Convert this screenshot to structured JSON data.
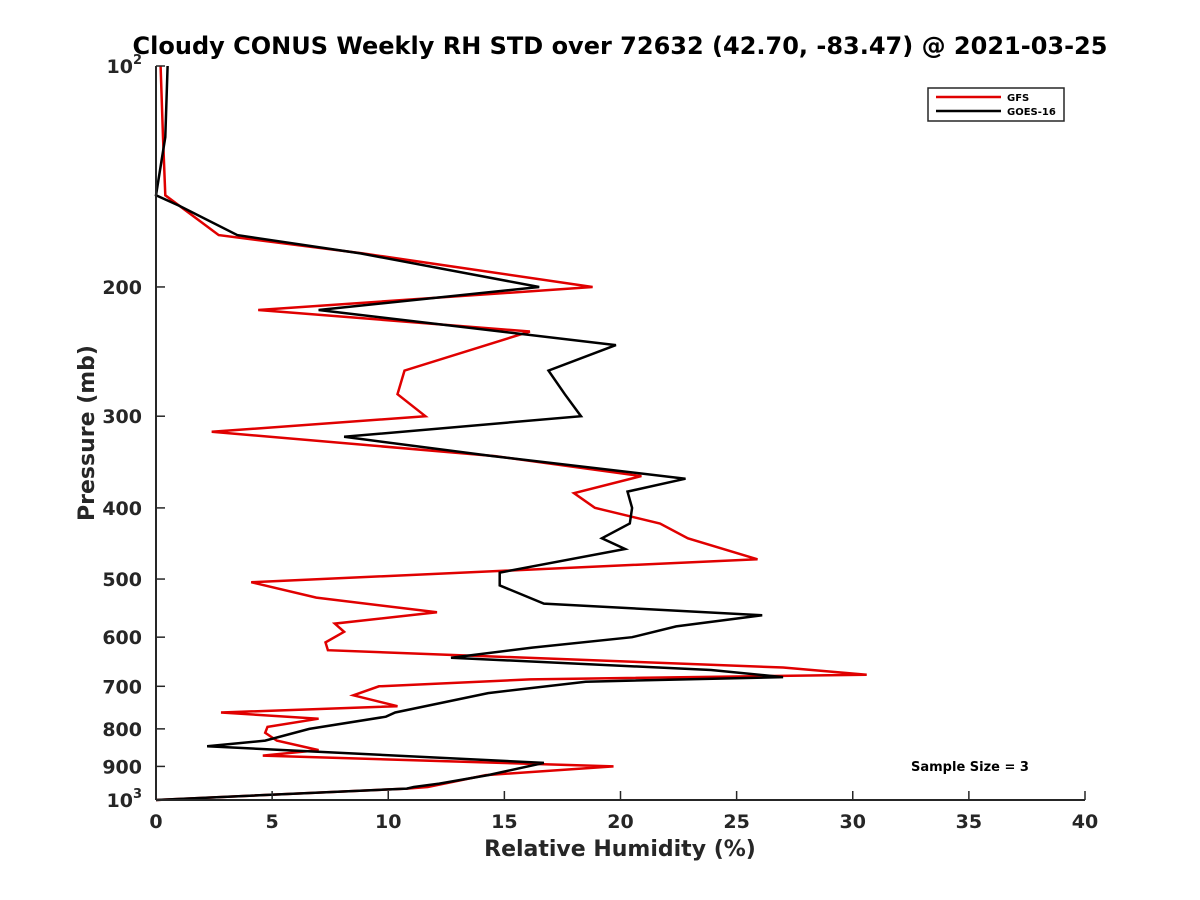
{
  "chart_data": {
    "type": "line",
    "title": "Cloudy CONUS Weekly RH STD over 72632 (42.70, -83.47) @ 2021-03-25",
    "xlabel": "Relative Humidity (%)",
    "ylabel": "Pressure (mb)",
    "xlim": [
      0,
      40
    ],
    "ylim": [
      100,
      1000
    ],
    "y_scale": "log",
    "y_reversed": true,
    "xticks": [
      0,
      5,
      10,
      15,
      20,
      25,
      30,
      35,
      40
    ],
    "yticks": [
      {
        "value": 100,
        "label": "10",
        "exp": "2"
      },
      {
        "value": 200,
        "label": "200"
      },
      {
        "value": 300,
        "label": "300"
      },
      {
        "value": 400,
        "label": "400"
      },
      {
        "value": 500,
        "label": "500"
      },
      {
        "value": 600,
        "label": "600"
      },
      {
        "value": 700,
        "label": "700"
      },
      {
        "value": 800,
        "label": "800"
      },
      {
        "value": 900,
        "label": "900"
      },
      {
        "value": 1000,
        "label": "10",
        "exp": "3"
      }
    ],
    "legend_position": "top-right",
    "grid": false,
    "annotation": "Sample Size = 3",
    "series": [
      {
        "name": "GFS",
        "color": "#e00000",
        "points": [
          [
            0.2,
            100
          ],
          [
            0.3,
            125
          ],
          [
            0.4,
            150
          ],
          [
            2.7,
            170
          ],
          [
            8.9,
            180
          ],
          [
            18.8,
            200
          ],
          [
            4.4,
            215
          ],
          [
            16.1,
            230
          ],
          [
            10.7,
            260
          ],
          [
            10.4,
            280
          ],
          [
            11.6,
            300
          ],
          [
            2.4,
            315
          ],
          [
            14.6,
            340
          ],
          [
            20.9,
            362
          ],
          [
            18.0,
            382
          ],
          [
            18.9,
            400
          ],
          [
            21.7,
            420
          ],
          [
            22.9,
            440
          ],
          [
            25.9,
            470
          ],
          [
            4.1,
            505
          ],
          [
            6.9,
            530
          ],
          [
            12.1,
            555
          ],
          [
            7.7,
            575
          ],
          [
            8.1,
            590
          ],
          [
            7.3,
            610
          ],
          [
            7.4,
            625
          ],
          [
            27.0,
            660
          ],
          [
            30.6,
            675
          ],
          [
            16.1,
            685
          ],
          [
            9.6,
            700
          ],
          [
            8.5,
            720
          ],
          [
            10.4,
            745
          ],
          [
            2.8,
            760
          ],
          [
            7.0,
            775
          ],
          [
            4.8,
            795
          ],
          [
            4.7,
            810
          ],
          [
            5.2,
            830
          ],
          [
            7.0,
            855
          ],
          [
            4.6,
            870
          ],
          [
            19.7,
            900
          ],
          [
            14.2,
            925
          ],
          [
            11.7,
            960
          ],
          [
            10.8,
            965
          ],
          [
            0.0,
            1000
          ]
        ]
      },
      {
        "name": "GOES-16",
        "color": "#000000",
        "points": [
          [
            0.5,
            100
          ],
          [
            0.4,
            125
          ],
          [
            0.0,
            150
          ],
          [
            1.0,
            155
          ],
          [
            3.5,
            170
          ],
          [
            8.8,
            180
          ],
          [
            16.5,
            200
          ],
          [
            7.0,
            215
          ],
          [
            19.8,
            240
          ],
          [
            16.9,
            260
          ],
          [
            17.6,
            280
          ],
          [
            18.3,
            300
          ],
          [
            8.1,
            320
          ],
          [
            14.5,
            340
          ],
          [
            22.8,
            365
          ],
          [
            20.3,
            380
          ],
          [
            20.5,
            400
          ],
          [
            20.4,
            420
          ],
          [
            19.2,
            440
          ],
          [
            20.2,
            455
          ],
          [
            14.8,
            490
          ],
          [
            14.8,
            510
          ],
          [
            16.7,
            540
          ],
          [
            26.1,
            560
          ],
          [
            22.4,
            580
          ],
          [
            20.5,
            600
          ],
          [
            16.2,
            620
          ],
          [
            12.7,
            640
          ],
          [
            23.9,
            665
          ],
          [
            27.0,
            680
          ],
          [
            18.5,
            690
          ],
          [
            14.3,
            715
          ],
          [
            10.3,
            760
          ],
          [
            9.9,
            770
          ],
          [
            6.6,
            800
          ],
          [
            4.7,
            830
          ],
          [
            2.2,
            845
          ],
          [
            16.7,
            890
          ],
          [
            14.3,
            925
          ],
          [
            12.2,
            950
          ],
          [
            11.1,
            960
          ],
          [
            10.8,
            965
          ],
          [
            0.0,
            1000
          ]
        ]
      }
    ]
  }
}
